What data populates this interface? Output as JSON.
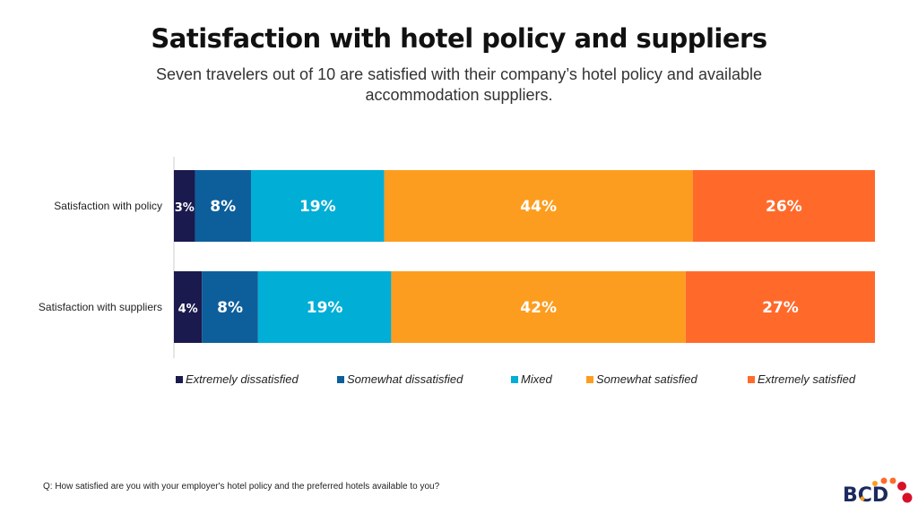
{
  "title": "Satisfaction with hotel policy and suppliers",
  "subtitle": "Seven travelers out of 10 are satisfied with their company’s hotel policy and available accommodation suppliers.",
  "footnote": "Q: How satisfied are you with your employer's hotel policy and the preferred hotels available to you?",
  "logo": "BCD",
  "chart_data": {
    "type": "bar",
    "orientation": "horizontal",
    "stacked": true,
    "xlim": [
      0,
      100
    ],
    "grid": false,
    "legend_placement": "bottom",
    "categories": [
      "Satisfaction with policy",
      "Satisfaction with suppliers"
    ],
    "series": [
      {
        "name": "Extremely dissatisfied",
        "color": "#1b1a4e",
        "values": [
          3,
          4
        ]
      },
      {
        "name": "Somewhat dissatisfied",
        "color": "#0d5f9b",
        "values": [
          8,
          8
        ]
      },
      {
        "name": "Mixed",
        "color": "#00aed6",
        "values": [
          19,
          19
        ]
      },
      {
        "name": "Somewhat satisfied",
        "color": "#fd9d1f",
        "values": [
          44,
          42
        ]
      },
      {
        "name": "Extremely satisfied",
        "color": "#ff6a2b",
        "values": [
          26,
          27
        ]
      }
    ]
  }
}
